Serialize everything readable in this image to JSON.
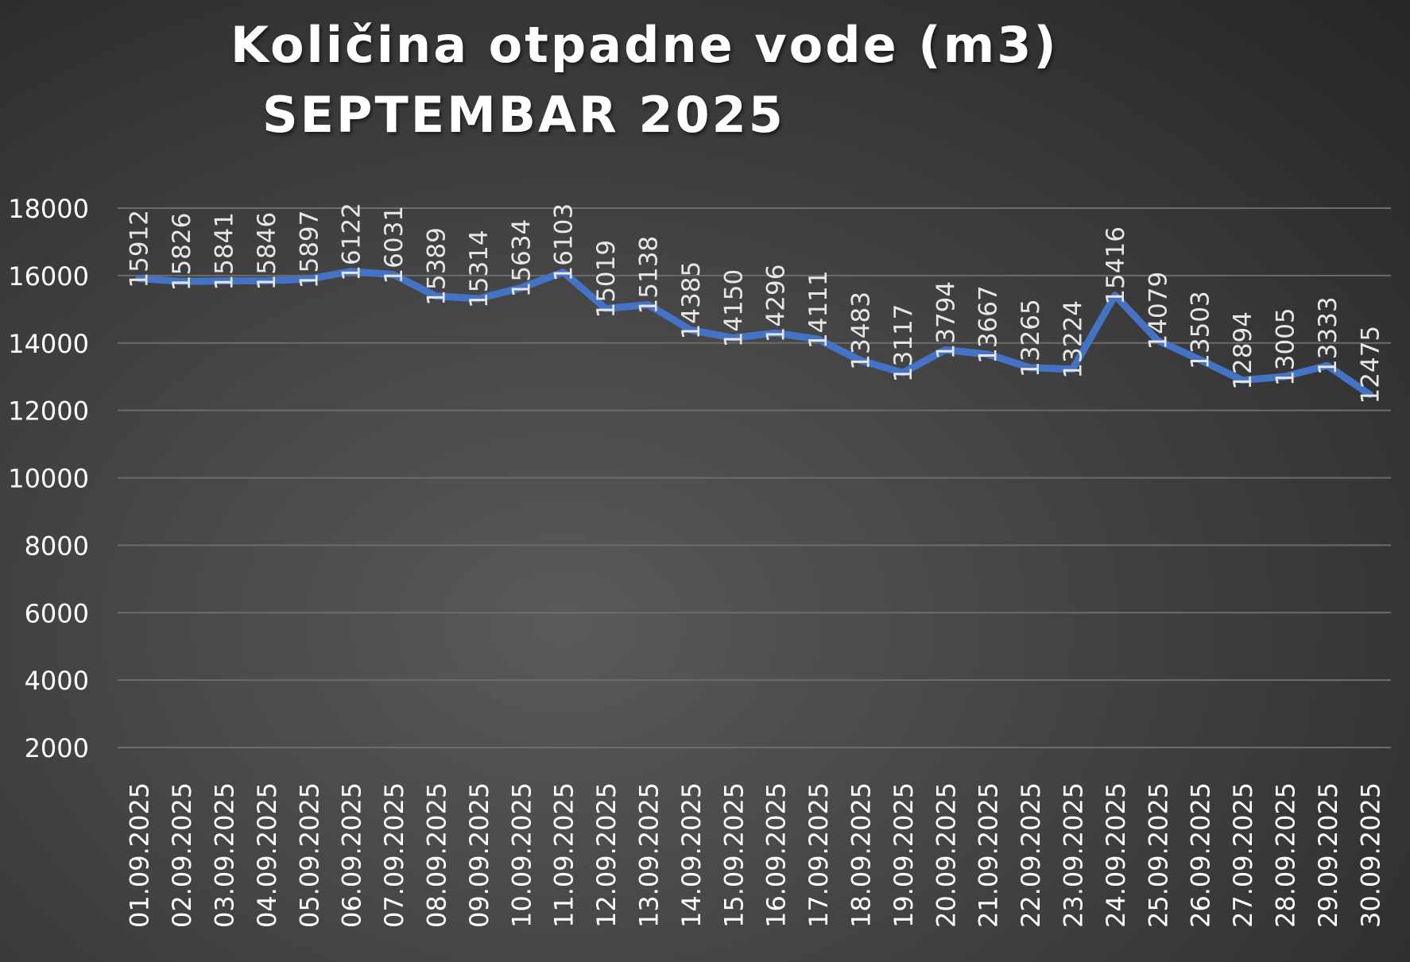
{
  "chart_data": {
    "type": "line",
    "title": "Količina otpadne vode (m3)",
    "subtitle": "SEPTEMBAR 2025",
    "xlabel": "",
    "ylabel": "",
    "ylim": [
      2000,
      18000
    ],
    "yticks": [
      18000,
      16000,
      14000,
      12000,
      10000,
      8000,
      6000,
      4000,
      2000
    ],
    "grid": true,
    "line_color": "#4472c4",
    "categories": [
      "01.09.2025",
      "02.09.2025",
      "03.09.2025",
      "04.09.2025",
      "05.09.2025",
      "06.09.2025",
      "07.09.2025",
      "08.09.2025",
      "09.09.2025",
      "10.09.2025",
      "11.09.2025",
      "12.09.2025",
      "13.09.2025",
      "14.09.2025",
      "15.09.2025",
      "16.09.2025",
      "17.09.2025",
      "18.09.2025",
      "19.09.2025",
      "20.09.2025",
      "21.09.2025",
      "22.09.2025",
      "23.09.2025",
      "24.09.2025",
      "25.09.2025",
      "26.09.2025",
      "27.09.2025",
      "28.09.2025",
      "29.09.2025",
      "30.09.2025"
    ],
    "values": [
      15912,
      15826,
      15841,
      15846,
      15897,
      16122,
      16031,
      15389,
      15314,
      15634,
      16103,
      15019,
      15138,
      14385,
      14150,
      14296,
      14111,
      13483,
      13117,
      13794,
      13667,
      13265,
      13224,
      15416,
      14079,
      13503,
      12894,
      13005,
      13333,
      12475
    ]
  }
}
